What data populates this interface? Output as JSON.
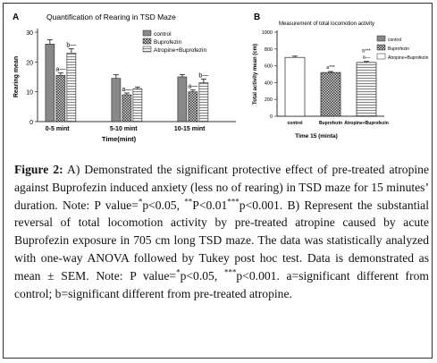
{
  "chart_data": [
    {
      "type": "bar",
      "panel_letter": "A",
      "title": "Quantification of Rearing in TSD Maze",
      "xlabel": "Time(mint)",
      "ylabel": "Rearing mean",
      "ylim": [
        0,
        30
      ],
      "yticks": [
        "0",
        "10",
        "20",
        "30"
      ],
      "categories": [
        "0-5 mint",
        "5-10 mint",
        "10-15 mint"
      ],
      "series": [
        {
          "name": "control",
          "values": [
            26,
            14.5,
            15
          ],
          "errors": [
            1.5,
            1.2,
            0.8
          ],
          "fill": "#888888",
          "pattern": "solid"
        },
        {
          "name": "Buprofezin",
          "values": [
            15.5,
            9,
            10
          ],
          "errors": [
            0.8,
            0.6,
            0.6
          ],
          "fill": "#555555",
          "pattern": "checker"
        },
        {
          "name": "Atropine+Buprofezin",
          "values": [
            23,
            11,
            13
          ],
          "errors": [
            1.4,
            0.6,
            1.3
          ],
          "fill": "#bbbbbb",
          "pattern": "lines"
        }
      ],
      "annotations": [
        {
          "category": 0,
          "series": 1,
          "text": "a—"
        },
        {
          "category": 0,
          "series": 2,
          "text": "b—"
        },
        {
          "category": 1,
          "series": 1,
          "text": "a—"
        },
        {
          "category": 2,
          "series": 1,
          "text": "a—"
        },
        {
          "category": 2,
          "series": 2,
          "text": "b—"
        }
      ],
      "legend": "top-right",
      "grid": false
    },
    {
      "type": "bar",
      "panel_letter": "B",
      "title": "Measurement of total locomotion activity",
      "xlabel": "Time  15 (minta)",
      "ylabel": "Total activity mean (cm)",
      "ylim": [
        0,
        1000
      ],
      "yticks": [
        "0",
        "200",
        "400",
        "600",
        "800",
        "1000"
      ],
      "categories": [
        "control",
        "Buprofezin",
        "Atropine+Buprofezin"
      ],
      "values": [
        700,
        520,
        640
      ],
      "errors": [
        15,
        12,
        12
      ],
      "annotations": [
        "",
        "a***",
        "b***\na—"
      ],
      "legend_items": [
        "control",
        "Buprofezin",
        "Atropine+Buprofezin"
      ],
      "legend": "top-right",
      "grid": false
    }
  ],
  "caption": {
    "lead": "Figure 2:",
    "segments": [
      {
        "t": " A) Demonstrated the significant protective effect of pre-treated atropine against Buprofezin induced anxiety (less no of rearing) in TSD maze for 15 minutes’ duration. Note: P value="
      },
      {
        "s": "*"
      },
      {
        "t": "p<0.05, "
      },
      {
        "s": "**"
      },
      {
        "t": "P<0.01"
      },
      {
        "s": "***"
      },
      {
        "t": "p<0.001. B) Represent the substantial reversal of total locomotion activity by pre-treated atropine caused by acute Buprofezin exposure in 705 cm long TSD maze. The data was statistically analyzed with one-way ANOVA followed by Tukey post hoc test. Data is demonstrated as mean ± SEM. Note: P value="
      },
      {
        "s": "*"
      },
      {
        "t": "p<0.05, "
      },
      {
        "s": "***"
      },
      {
        "t": "p<0.001. a=significant different from control; b=significant different from pre-treated atropine."
      }
    ]
  }
}
